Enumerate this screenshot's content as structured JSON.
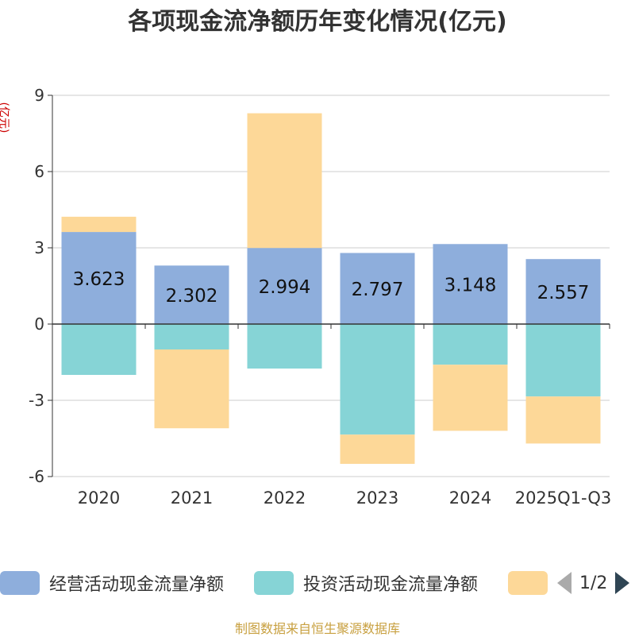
{
  "chart_data": {
    "type": "bar",
    "stacked": true,
    "title": "各项现金流净额历年变化情况(亿元)",
    "ylabel": "(亿元)",
    "ylim": [
      -6,
      9
    ],
    "yticks": [
      9,
      6,
      3,
      0,
      -3,
      -6
    ],
    "categories": [
      "2020",
      "2021",
      "2022",
      "2023",
      "2024",
      "2025Q1-Q3"
    ],
    "series": [
      {
        "name": "经营活动现金流量净额",
        "color": "#8eaedc",
        "values": [
          3.623,
          2.302,
          2.994,
          2.797,
          3.148,
          2.557
        ],
        "show_labels": true
      },
      {
        "name": "投资活动现金流量净额",
        "color": "#86d4d6",
        "values": [
          -2.0,
          -1.0,
          -1.75,
          -4.35,
          -1.6,
          -2.85
        ],
        "show_labels": false
      },
      {
        "name": "",
        "color": "#fdd898",
        "values": [
          0.6,
          -3.1,
          5.3,
          -1.15,
          -2.6,
          -1.85
        ],
        "show_labels": false
      }
    ],
    "legend": {
      "position": "bottom",
      "page": "1/2"
    },
    "grid": true
  },
  "footer": {
    "source": "制图数据来自恒生聚源数据库"
  }
}
